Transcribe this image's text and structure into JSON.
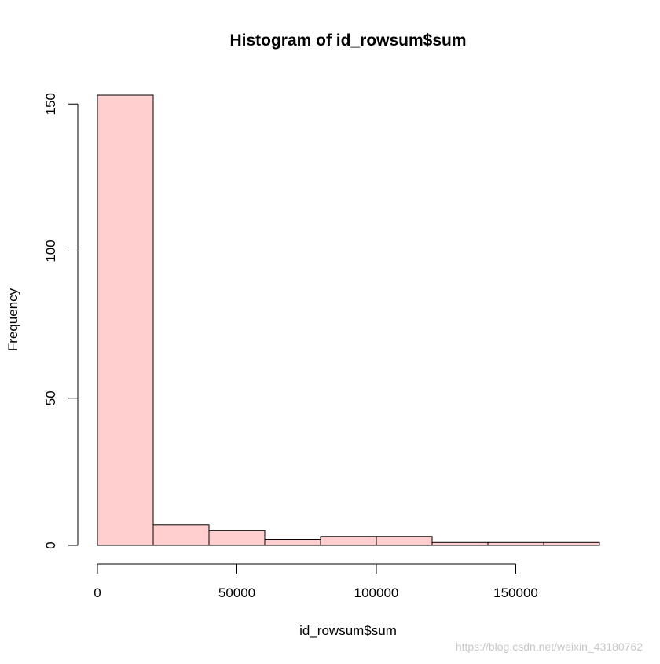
{
  "chart_data": {
    "type": "bar",
    "title": "Histogram of id_rowsum$sum",
    "xlabel": "id_rowsum$sum",
    "ylabel": "Frequency",
    "bins": [
      {
        "from": 0,
        "to": 20000,
        "count": 153
      },
      {
        "from": 20000,
        "to": 40000,
        "count": 7
      },
      {
        "from": 40000,
        "to": 60000,
        "count": 5
      },
      {
        "from": 60000,
        "to": 80000,
        "count": 2
      },
      {
        "from": 80000,
        "to": 100000,
        "count": 3
      },
      {
        "from": 100000,
        "to": 120000,
        "count": 3
      },
      {
        "from": 120000,
        "to": 140000,
        "count": 1
      },
      {
        "from": 140000,
        "to": 160000,
        "count": 1
      },
      {
        "from": 160000,
        "to": 180000,
        "count": 1
      }
    ],
    "xlim": [
      0,
      180000
    ],
    "ylim": [
      0,
      153
    ],
    "xticks": [
      0,
      50000,
      100000,
      150000
    ],
    "xtick_labels": [
      "0",
      "50000",
      "100000",
      "150000"
    ],
    "yticks": [
      0,
      50,
      100,
      150
    ],
    "ytick_labels": [
      "0",
      "50",
      "100",
      "150"
    ],
    "grid": false,
    "bar_color": "#ffcfcf",
    "edge_color": "#000000"
  },
  "watermark": "https://blog.csdn.net/weixin_43180762"
}
